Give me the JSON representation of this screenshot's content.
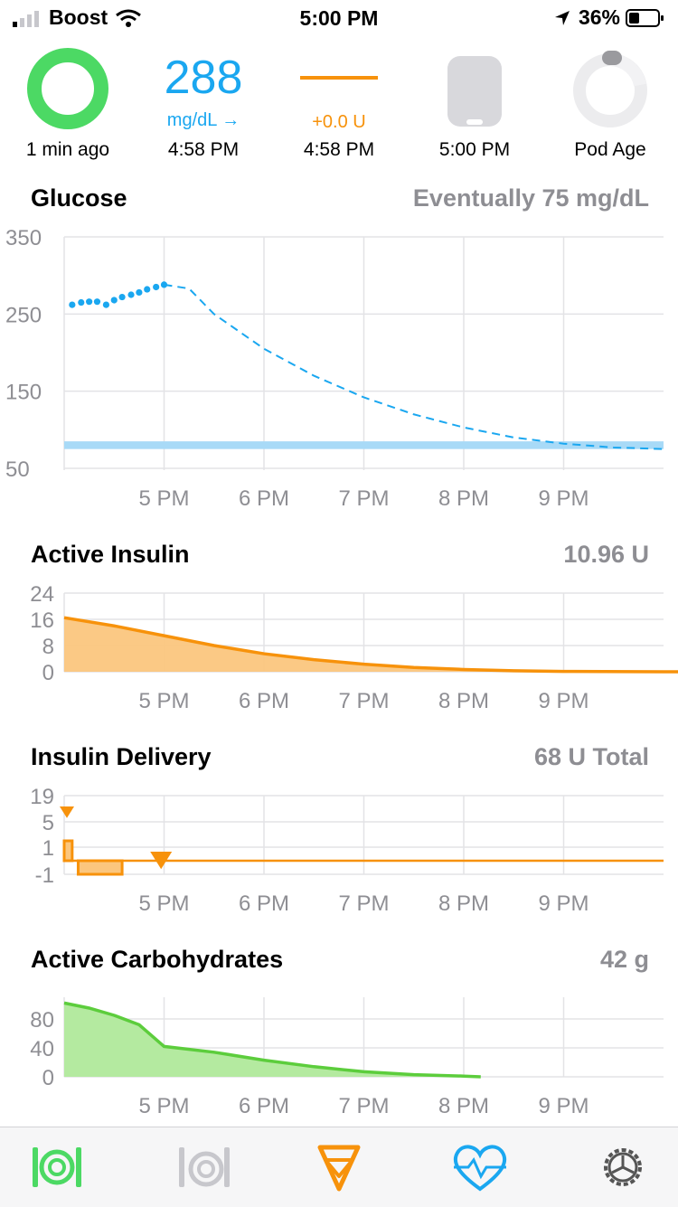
{
  "status_bar": {
    "carrier": "Boost",
    "time": "5:00 PM",
    "battery": "36%"
  },
  "hud": {
    "loop_status": {
      "label": "1 min ago",
      "color": "#4cd964"
    },
    "glucose": {
      "value": "288",
      "unit": "mg/dL →",
      "time": "4:58 PM",
      "color": "#1aa7f0"
    },
    "basal": {
      "value": "+0.0 U",
      "time": "4:58 PM",
      "color": "#f7920b"
    },
    "pump": {
      "time": "5:00 PM"
    },
    "pod_age": {
      "label": "Pod Age"
    }
  },
  "sections": {
    "glucose": {
      "title": "Glucose",
      "value": "Eventually 75 mg/dL"
    },
    "active_insulin": {
      "title": "Active Insulin",
      "value": "10.96 U"
    },
    "insulin_delivery": {
      "title": "Insulin Delivery",
      "value": "68 U Total"
    },
    "active_carbs": {
      "title": "Active Carbohydrates",
      "value": "42 g"
    }
  },
  "x_axis_labels": [
    "5 PM",
    "6 PM",
    "7 PM",
    "8 PM",
    "9 PM"
  ],
  "chart_data": [
    {
      "type": "line",
      "name": "glucose",
      "y_ticks": [
        "350",
        "250",
        "150",
        "50"
      ],
      "ylim": [
        50,
        350
      ],
      "x_range_hours": [
        16.0,
        22.0
      ],
      "target_range": [
        75,
        85
      ],
      "observed": [
        {
          "t": 16.08,
          "v": 262
        },
        {
          "t": 16.17,
          "v": 265
        },
        {
          "t": 16.25,
          "v": 266
        },
        {
          "t": 16.33,
          "v": 266
        },
        {
          "t": 16.42,
          "v": 262
        },
        {
          "t": 16.5,
          "v": 268
        },
        {
          "t": 16.58,
          "v": 272
        },
        {
          "t": 16.67,
          "v": 275
        },
        {
          "t": 16.75,
          "v": 278
        },
        {
          "t": 16.83,
          "v": 282
        },
        {
          "t": 16.92,
          "v": 285
        },
        {
          "t": 17.0,
          "v": 288
        }
      ],
      "predicted": [
        {
          "t": 17.0,
          "v": 288
        },
        {
          "t": 17.25,
          "v": 283
        },
        {
          "t": 17.5,
          "v": 250
        },
        {
          "t": 18.0,
          "v": 205
        },
        {
          "t": 18.5,
          "v": 170
        },
        {
          "t": 19.0,
          "v": 142
        },
        {
          "t": 19.5,
          "v": 120
        },
        {
          "t": 20.0,
          "v": 103
        },
        {
          "t": 20.5,
          "v": 90
        },
        {
          "t": 21.0,
          "v": 82
        },
        {
          "t": 21.5,
          "v": 77
        },
        {
          "t": 22.0,
          "v": 75
        }
      ]
    },
    {
      "type": "area",
      "name": "active_insulin",
      "y_ticks": [
        "24",
        "16",
        "8",
        "0"
      ],
      "ylim": [
        0,
        24
      ],
      "points": [
        {
          "t": 16.0,
          "v": 16.5
        },
        {
          "t": 16.5,
          "v": 14.0
        },
        {
          "t": 17.0,
          "v": 11.0
        },
        {
          "t": 17.5,
          "v": 8.0
        },
        {
          "t": 18.0,
          "v": 5.5
        },
        {
          "t": 18.5,
          "v": 3.7
        },
        {
          "t": 19.0,
          "v": 2.3
        },
        {
          "t": 19.5,
          "v": 1.3
        },
        {
          "t": 20.0,
          "v": 0.7
        },
        {
          "t": 20.5,
          "v": 0.3
        },
        {
          "t": 21.0,
          "v": 0.1
        },
        {
          "t": 22.0,
          "v": 0.0
        }
      ]
    },
    {
      "type": "step",
      "name": "insulin_delivery",
      "y_ticks": [
        "19",
        "5",
        "1",
        "-1"
      ],
      "basal_steps": [
        {
          "t": 16.0,
          "v": 1.0
        },
        {
          "t": 16.08,
          "v": -1.0
        },
        {
          "t": 16.25,
          "v": -1.0
        },
        {
          "t": 16.58,
          "v": -1.0
        },
        {
          "t": 16.67,
          "v": 0.0
        },
        {
          "t": 17.0,
          "v": 0.0
        }
      ],
      "boluses": [
        {
          "t": 16.0
        },
        {
          "t": 16.97
        }
      ]
    },
    {
      "type": "area",
      "name": "active_carbs",
      "y_ticks": [
        "80",
        "40",
        "0"
      ],
      "ylim": [
        0,
        80
      ],
      "points": [
        {
          "t": 16.0,
          "v": 102
        },
        {
          "t": 16.25,
          "v": 95
        },
        {
          "t": 16.5,
          "v": 85
        },
        {
          "t": 16.75,
          "v": 72
        },
        {
          "t": 17.0,
          "v": 42
        },
        {
          "t": 17.5,
          "v": 34
        },
        {
          "t": 18.0,
          "v": 23
        },
        {
          "t": 18.5,
          "v": 14
        },
        {
          "t": 19.0,
          "v": 7
        },
        {
          "t": 19.5,
          "v": 3
        },
        {
          "t": 20.0,
          "v": 1
        },
        {
          "t": 20.17,
          "v": 0
        }
      ]
    }
  ],
  "tab_bar": {
    "items": [
      {
        "icon": "carbs-plate-icon",
        "color": "#4cd964"
      },
      {
        "icon": "pre-meal-icon",
        "color": "#c7c7cc"
      },
      {
        "icon": "bolus-icon",
        "color": "#f7920b"
      },
      {
        "icon": "health-heart-icon",
        "color": "#1aa7f0"
      },
      {
        "icon": "settings-gear-icon",
        "color": "#555555"
      }
    ]
  }
}
